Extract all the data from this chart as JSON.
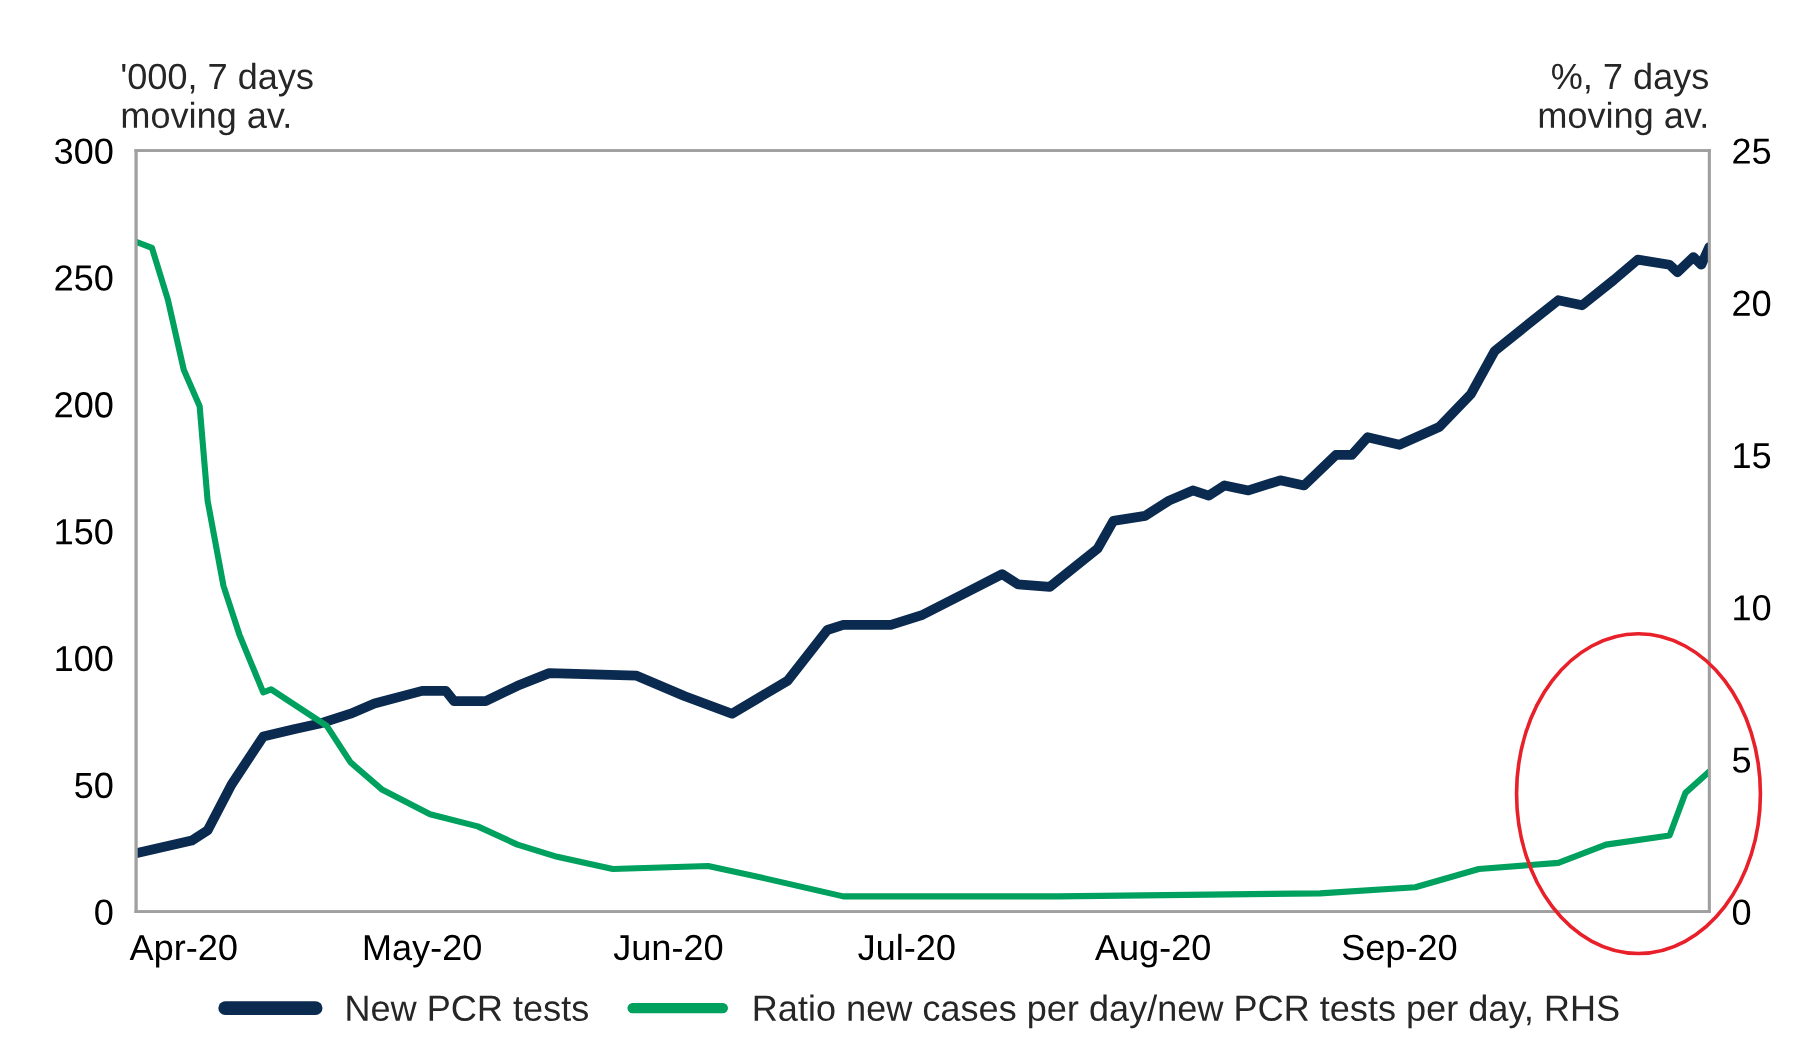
{
  "chart_data": {
    "type": "line",
    "ylabel": "'000, 7 days\nmoving av.",
    "y2label": "%, 7 days\nmoving av.",
    "xlim": [
      "2020-03-26",
      "2020-10-10"
    ],
    "xticks": [
      {
        "value": "2020-04-01",
        "label": "Apr-20"
      },
      {
        "value": "2020-05-01",
        "label": "May-20"
      },
      {
        "value": "2020-06-01",
        "label": "Jun-20"
      },
      {
        "value": "2020-07-01",
        "label": "Jul-20"
      },
      {
        "value": "2020-08-01",
        "label": "Aug-20"
      },
      {
        "value": "2020-09-01",
        "label": "Sep-20"
      }
    ],
    "ylim": [
      0,
      300
    ],
    "yticks": [
      0,
      50,
      100,
      150,
      200,
      250,
      300
    ],
    "y2lim": [
      0,
      25
    ],
    "y2ticks": [
      0,
      5,
      10,
      15,
      20,
      25
    ],
    "grid": false,
    "legend": "bottom",
    "series": [
      {
        "name": "New PCR tests",
        "color": "#0b2a4f",
        "x": [
          "2020-03-26",
          "2020-04-02",
          "2020-04-04",
          "2020-04-07",
          "2020-04-11",
          "2020-04-15",
          "2020-04-18",
          "2020-04-22",
          "2020-04-25",
          "2020-05-01",
          "2020-05-04",
          "2020-05-05",
          "2020-05-09",
          "2020-05-13",
          "2020-05-17",
          "2020-05-28",
          "2020-06-03",
          "2020-06-09",
          "2020-06-16",
          "2020-06-21",
          "2020-06-23",
          "2020-06-29",
          "2020-07-03",
          "2020-07-08",
          "2020-07-13",
          "2020-07-15",
          "2020-07-19",
          "2020-07-25",
          "2020-07-27",
          "2020-07-31",
          "2020-08-03",
          "2020-08-06",
          "2020-08-08",
          "2020-08-10",
          "2020-08-13",
          "2020-08-17",
          "2020-08-20",
          "2020-08-24",
          "2020-08-26",
          "2020-08-28",
          "2020-09-01",
          "2020-09-06",
          "2020-09-10",
          "2020-09-13",
          "2020-09-17",
          "2020-09-21",
          "2020-09-24",
          "2020-09-28",
          "2020-10-01",
          "2020-10-05",
          "2020-10-06",
          "2020-10-08",
          "2020-10-09",
          "2020-10-10"
        ],
        "values": [
          23,
          28,
          32,
          50,
          69,
          72,
          74,
          78,
          82,
          87,
          87,
          83,
          83,
          89,
          94,
          93,
          85,
          78,
          91,
          111,
          113,
          113,
          117,
          125,
          133,
          129,
          128,
          143,
          154,
          156,
          162,
          166,
          164,
          168,
          166,
          170,
          168,
          180,
          180,
          187,
          184,
          191,
          204,
          221,
          231,
          241,
          239,
          249,
          257,
          255,
          252,
          258,
          255,
          262
        ]
      },
      {
        "name": "Ratio new cases per day/new PCR tests per day, RHS",
        "color": "#00a05e",
        "axis": "y2",
        "x": [
          "2020-03-26",
          "2020-03-28",
          "2020-03-30",
          "2020-04-01",
          "2020-04-03",
          "2020-04-04",
          "2020-04-06",
          "2020-04-08",
          "2020-04-11",
          "2020-04-12",
          "2020-04-19",
          "2020-04-22",
          "2020-04-26",
          "2020-05-02",
          "2020-05-08",
          "2020-05-13",
          "2020-05-18",
          "2020-05-25",
          "2020-06-06",
          "2020-06-13",
          "2020-06-23",
          "2020-07-07",
          "2020-07-20",
          "2020-08-22",
          "2020-09-03",
          "2020-09-11",
          "2020-09-21",
          "2020-09-27",
          "2020-10-05",
          "2020-10-07",
          "2020-10-10"
        ],
        "values": [
          22.0,
          21.8,
          20.1,
          17.8,
          16.6,
          13.5,
          10.7,
          9.1,
          7.2,
          7.3,
          6.1,
          4.9,
          4.0,
          3.2,
          2.8,
          2.2,
          1.8,
          1.4,
          1.5,
          1.1,
          0.5,
          0.5,
          0.5,
          0.6,
          0.8,
          1.4,
          1.6,
          2.2,
          2.5,
          3.9,
          4.6
        ]
      }
    ]
  }
}
